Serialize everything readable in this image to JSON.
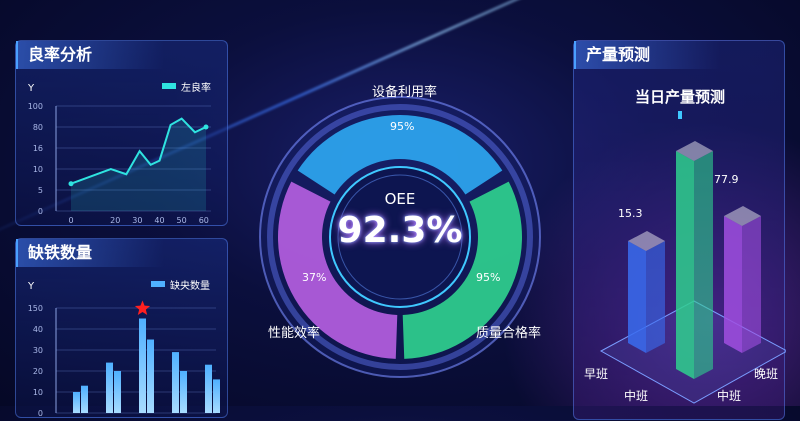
{
  "yield_panel": {
    "title": "良率分析",
    "y_label": "Y",
    "legend": "左良率",
    "color": "#2fe3e0"
  },
  "defect_panel": {
    "title": "缺铁数量",
    "y_label": "Y",
    "legend": "缺央数量",
    "color": "#4fb0ff"
  },
  "gauge": {
    "top_label": "设备利用率",
    "left_label": "性能效率",
    "right_label": "质量合格率",
    "center_label": "OEE",
    "center_value": "92.3%",
    "top_value": "95%",
    "left_value": "37%",
    "right_value": "95%",
    "colors": {
      "top": "#2ea6f0",
      "right": "#2fd08e",
      "left": "#b45ee0"
    }
  },
  "forecast_panel": {
    "title": "产量预测",
    "subtitle": "当日产量预测",
    "bars": [
      {
        "label": "早班",
        "value": "15.3",
        "color": "#3a6cf0"
      },
      {
        "label": "中班",
        "value": "",
        "color": "#2fd08e"
      },
      {
        "label": "晚班",
        "value": "77.9",
        "color": "#a04fe0"
      }
    ],
    "axis_labels": [
      "早班",
      "中班",
      "中班",
      "晚班"
    ]
  },
  "chart_data": [
    {
      "type": "line",
      "ylabel": "Y",
      "legend": "左良率",
      "x_ticks": [
        "0",
        "20",
        "30",
        "40",
        "50",
        "60"
      ],
      "y_ticks": [
        "0",
        "5",
        "10",
        "16",
        "80",
        "100"
      ],
      "x": [
        0,
        18,
        25,
        31,
        36,
        40,
        45,
        50,
        56,
        61
      ],
      "y": [
        6.5,
        10,
        8.75,
        15.1,
        11.2,
        12.4,
        82,
        88,
        64,
        80
      ]
    },
    {
      "type": "bar",
      "ylabel": "Y",
      "legend": "缺央数量",
      "y_ticks": [
        "0",
        "10",
        "20",
        "30",
        "40",
        "150"
      ],
      "series": [
        {
          "values": [
            10,
            24,
            95,
            29,
            23
          ]
        },
        {
          "values": [
            13,
            20,
            35,
            20,
            16
          ]
        }
      ],
      "highlight": "star on max bar"
    }
  ]
}
